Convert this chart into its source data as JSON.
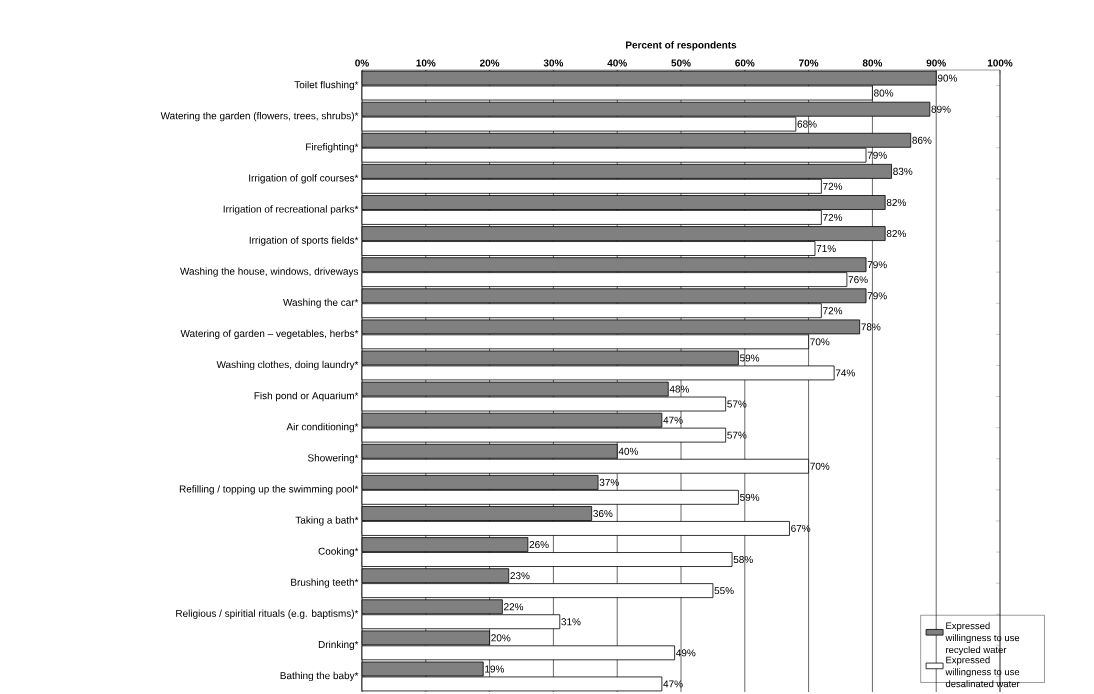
{
  "chart_data": {
    "type": "bar",
    "orientation": "horizontal",
    "xlabel": "Percent of respondents",
    "categories": [
      "Toilet flushing*",
      "Watering the garden (flowers, trees, shrubs)*",
      "Firefighting*",
      "Irrigation of golf courses*",
      "Irrigation of recreational parks*",
      "Irrigation of sports fields*",
      "Washing the house, windows, driveways",
      "Washing the car*",
      "Watering of garden – vegetables, herbs*",
      "Washing clothes, doing laundry*",
      "Fish pond or Aquarium*",
      "Air conditioning*",
      "Showering*",
      "Refilling / topping up the swimming pool*",
      "Taking a bath*",
      "Cooking*",
      "Brushing teeth*",
      "Religious / spiritial rituals (e.g. baptisms)*",
      "Drinking*",
      "Bathing the baby*"
    ],
    "series": [
      {
        "name": "Expressed willingness to use recycled water",
        "color": "#808080",
        "values": [
          90,
          89,
          86,
          83,
          82,
          82,
          79,
          79,
          78,
          59,
          48,
          47,
          40,
          37,
          36,
          26,
          23,
          22,
          20,
          19
        ],
        "value_labels": [
          "90%",
          "89%",
          "86%",
          "83%",
          "82%",
          "82%",
          "79%",
          "79%",
          "78%",
          "59%",
          "48%",
          "47%",
          "40%",
          "37%",
          "36%",
          "26%",
          "23%",
          "22%",
          "20%",
          "19%"
        ]
      },
      {
        "name": "Expressed willingness to use desalinated water",
        "color": "#ffffff",
        "values": [
          80,
          68,
          79,
          72,
          72,
          71,
          76,
          72,
          70,
          74,
          57,
          57,
          70,
          59,
          67,
          58,
          55,
          31,
          49,
          47
        ],
        "value_labels": [
          "80%",
          "68%",
          "79%",
          "72%",
          "72%",
          "71%",
          "76%",
          "72%",
          "70%",
          "74%",
          "57%",
          "57%",
          "70%",
          "59%",
          "67%",
          "58%",
          "55%",
          "31%",
          "49%",
          "47%"
        ]
      }
    ],
    "xlim": [
      0,
      100
    ],
    "xticks": [
      {
        "value": 0,
        "label": "0%"
      },
      {
        "value": 10,
        "label": "10%"
      },
      {
        "value": 20,
        "label": "20%"
      },
      {
        "value": 30,
        "label": "30%"
      },
      {
        "value": 40,
        "label": "40%"
      },
      {
        "value": 50,
        "label": "50%"
      },
      {
        "value": 60,
        "label": "60%"
      },
      {
        "value": 70,
        "label": "70%"
      },
      {
        "value": 80,
        "label": "80%"
      },
      {
        "value": 90,
        "label": "90%"
      },
      {
        "value": 100,
        "label": "100%"
      }
    ],
    "grid": "x",
    "legend": "bottom right"
  }
}
